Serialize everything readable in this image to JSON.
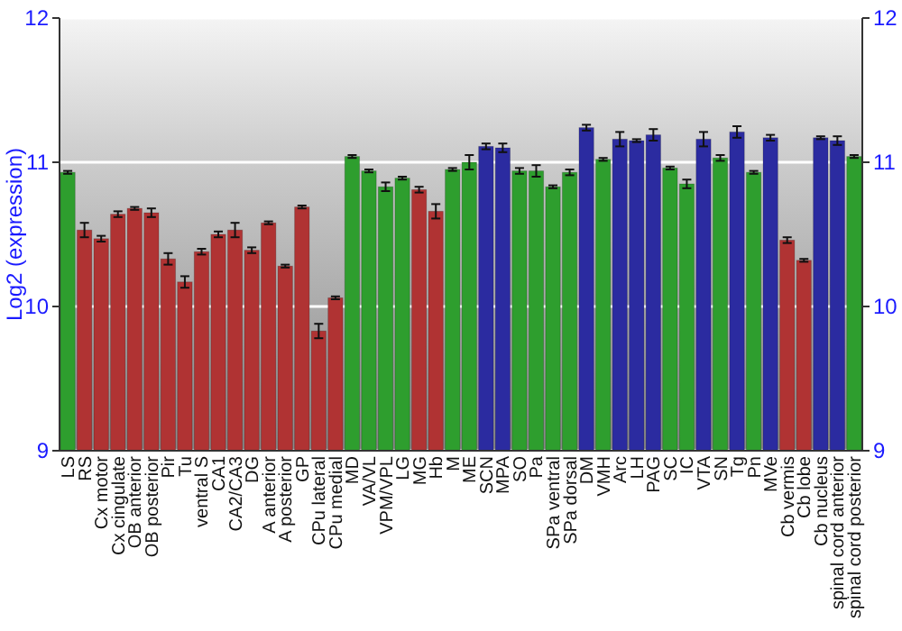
{
  "chart_data": {
    "type": "bar",
    "ylabel": "Log2 (expression)",
    "categories": [
      "LS",
      "RS",
      "Cx motor",
      "Cx cingulate",
      "OB anterior",
      "OB posterior",
      "Pir",
      "Tu",
      "ventral S",
      "CA1",
      "CA2/CA3",
      "DG",
      "A anterior",
      "A posterior",
      "GP",
      "CPu lateral",
      "CPu medial",
      "MD",
      "VA/VL",
      "VPM/VPL",
      "LG",
      "MG",
      "Hb",
      "M",
      "ME",
      "SCN",
      "MPA",
      "SO",
      "Pa",
      "SPa ventral",
      "SPa dorsal",
      "DM",
      "VMH",
      "Arc",
      "LH",
      "PAG",
      "SC",
      "IC",
      "VTA",
      "SN",
      "Tg",
      "Pn",
      "MVe",
      "Cb vermis",
      "Cb lobe",
      "Cb nucleus",
      "spinal cord anterior",
      "spinal cord posterior"
    ],
    "values": [
      10.93,
      10.53,
      10.47,
      10.64,
      10.68,
      10.65,
      10.33,
      10.17,
      10.38,
      10.5,
      10.53,
      10.39,
      10.58,
      10.28,
      10.69,
      9.83,
      10.06,
      11.04,
      10.94,
      10.83,
      10.89,
      10.81,
      10.66,
      10.95,
      11.0,
      11.11,
      11.1,
      10.94,
      10.94,
      10.83,
      10.93,
      11.24,
      11.02,
      11.16,
      11.15,
      11.19,
      10.96,
      10.85,
      11.16,
      11.03,
      11.21,
      10.93,
      11.17,
      10.46,
      10.32,
      11.17,
      11.15,
      11.04
    ],
    "errors": [
      0.01,
      0.05,
      0.02,
      0.02,
      0.01,
      0.03,
      0.04,
      0.04,
      0.02,
      0.02,
      0.05,
      0.02,
      0.01,
      0.01,
      0.01,
      0.05,
      0.01,
      0.01,
      0.01,
      0.03,
      0.01,
      0.02,
      0.05,
      0.01,
      0.05,
      0.02,
      0.03,
      0.02,
      0.04,
      0.01,
      0.02,
      0.02,
      0.01,
      0.05,
      0.01,
      0.04,
      0.01,
      0.03,
      0.05,
      0.02,
      0.04,
      0.01,
      0.02,
      0.02,
      0.01,
      0.01,
      0.03,
      0.01
    ],
    "colors": [
      "#2e9e2e",
      "#b03333",
      "#b03333",
      "#b03333",
      "#b03333",
      "#b03333",
      "#b03333",
      "#b03333",
      "#b03333",
      "#b03333",
      "#b03333",
      "#b03333",
      "#b03333",
      "#b03333",
      "#b03333",
      "#b03333",
      "#b03333",
      "#2e9e2e",
      "#2e9e2e",
      "#2e9e2e",
      "#2e9e2e",
      "#b03333",
      "#b03333",
      "#2e9e2e",
      "#2e9e2e",
      "#2b2ba0",
      "#2b2ba0",
      "#2e9e2e",
      "#2e9e2e",
      "#2e9e2e",
      "#2e9e2e",
      "#2b2ba0",
      "#2e9e2e",
      "#2b2ba0",
      "#2b2ba0",
      "#2b2ba0",
      "#2e9e2e",
      "#2e9e2e",
      "#2b2ba0",
      "#2e9e2e",
      "#2b2ba0",
      "#2e9e2e",
      "#2b2ba0",
      "#b03333",
      "#b03333",
      "#2b2ba0",
      "#2b2ba0",
      "#2e9e2e"
    ],
    "ylim": [
      9,
      12
    ],
    "yticks": [
      9,
      10,
      11,
      12
    ],
    "y2lim": [
      9,
      12
    ],
    "y2ticks": [
      9,
      10,
      11,
      12
    ],
    "grid": "y"
  }
}
